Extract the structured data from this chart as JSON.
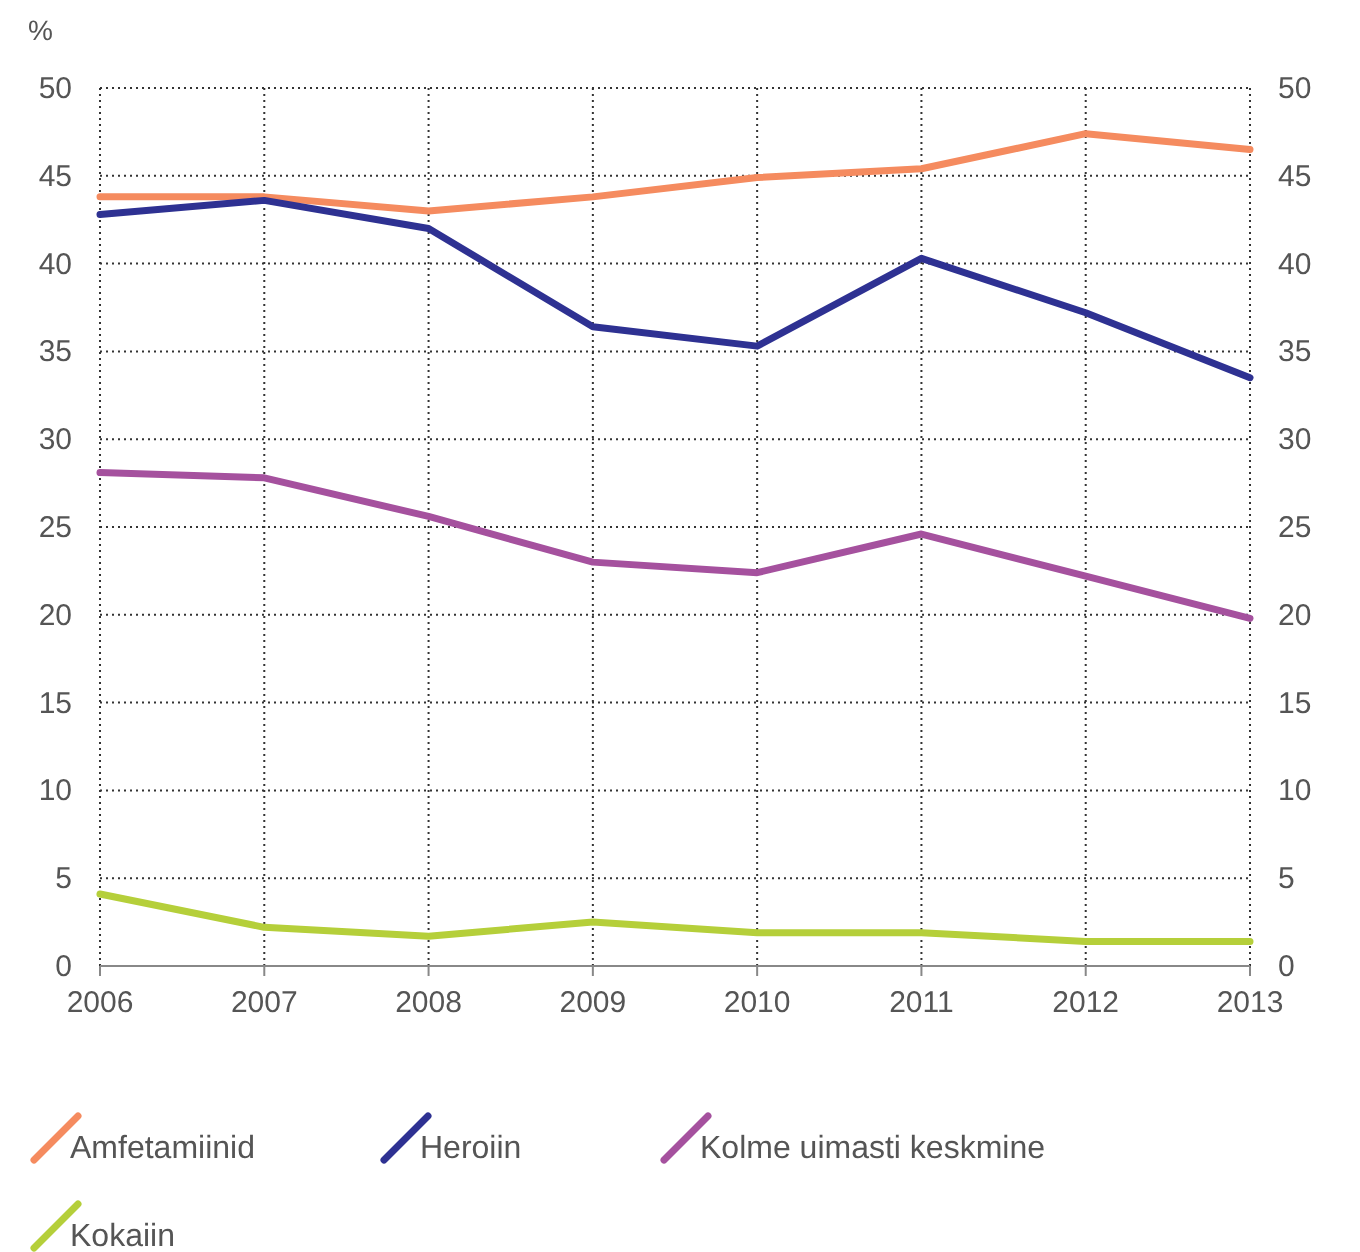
{
  "chart_data": {
    "type": "line",
    "ylabel": "%",
    "x": [
      2006,
      2007,
      2008,
      2009,
      2010,
      2011,
      2012,
      2013
    ],
    "xlim": [
      2006,
      2013
    ],
    "xticks": [
      2006,
      2007,
      2008,
      2009,
      2010,
      2011,
      2012,
      2013
    ],
    "ylim": [
      0,
      50
    ],
    "yticks": [
      0,
      5,
      10,
      15,
      20,
      25,
      30,
      35,
      40,
      45,
      50
    ],
    "y2lim": [
      0,
      50
    ],
    "y2ticks": [
      0,
      5,
      10,
      15,
      20,
      25,
      30,
      35,
      40,
      45,
      50
    ],
    "grid": true,
    "legend": "bottom",
    "marker": "none",
    "line_style": "solid",
    "series": [
      {
        "name": "Amfetamiinid",
        "color": "#f58b5f",
        "values": [
          43.8,
          43.8,
          43.0,
          43.8,
          44.9,
          45.4,
          47.4,
          46.5
        ]
      },
      {
        "name": "Heroiin",
        "color": "#2e3192",
        "values": [
          42.8,
          43.6,
          42.0,
          36.4,
          35.3,
          40.3,
          37.2,
          33.5
        ]
      },
      {
        "name": "Kolme uimasti keskmine",
        "color": "#a5519e",
        "values": [
          28.1,
          27.8,
          25.6,
          23.0,
          22.4,
          24.6,
          22.2,
          19.8
        ]
      },
      {
        "name": "Kokaiin",
        "color": "#b5cf3a",
        "values": [
          4.1,
          2.2,
          1.7,
          2.5,
          1.9,
          1.9,
          1.4,
          1.4
        ]
      }
    ]
  }
}
